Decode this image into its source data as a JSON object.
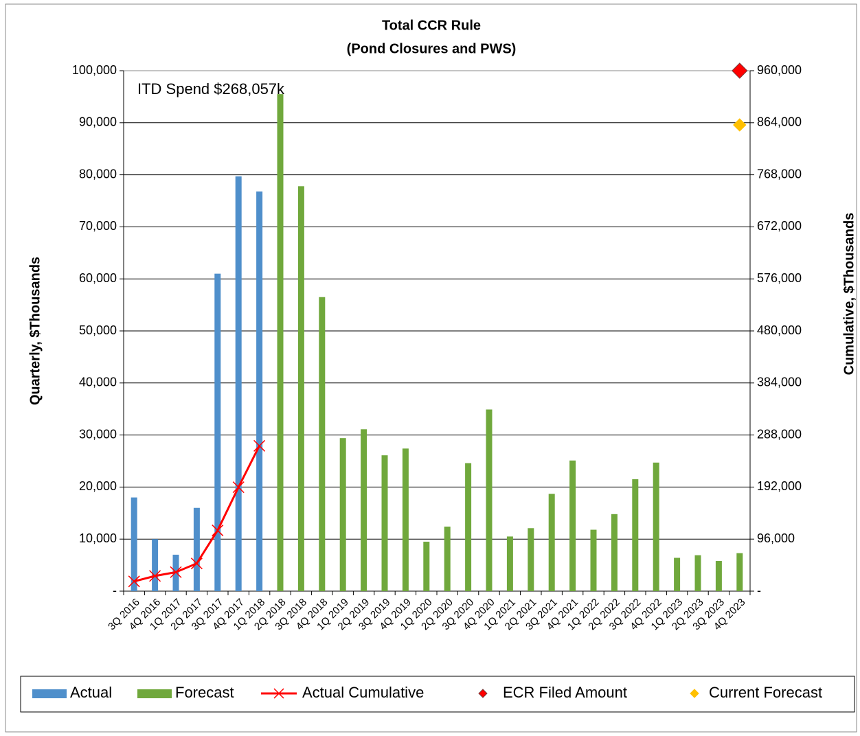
{
  "chart_data": {
    "type": "bar",
    "title": "Total CCR Rule",
    "subtitle": "(Pond Closures and PWS)",
    "annotation": "ITD Spend  $268,057k",
    "ylabel": "Quarterly, $Thousands",
    "y2label": "Cumulative, $Thousands",
    "grid": true,
    "legend": "bottom",
    "categories": [
      "3Q 2016",
      "4Q 2016",
      "1Q 2017",
      "2Q 2017",
      "3Q 2017",
      "4Q 2017",
      "1Q 2018",
      "2Q 2018",
      "3Q 2018",
      "4Q 2018",
      "1Q 2019",
      "2Q 2019",
      "3Q 2019",
      "4Q 2019",
      "1Q 2020",
      "2Q 2020",
      "3Q 2020",
      "4Q 2020",
      "1Q 2021",
      "2Q 2021",
      "3Q 2021",
      "4Q 2021",
      "1Q 2022",
      "2Q 2022",
      "3Q 2022",
      "4Q 2022",
      "1Q 2023",
      "2Q 2023",
      "3Q 2023",
      "4Q 2023"
    ],
    "ylim": [
      0,
      100000
    ],
    "yticks": [
      {
        "value": 0,
        "label": "-"
      },
      {
        "value": 10000,
        "label": "10,000"
      },
      {
        "value": 20000,
        "label": "20,000"
      },
      {
        "value": 30000,
        "label": "30,000"
      },
      {
        "value": 40000,
        "label": "40,000"
      },
      {
        "value": 50000,
        "label": "50,000"
      },
      {
        "value": 60000,
        "label": "60,000"
      },
      {
        "value": 70000,
        "label": "70,000"
      },
      {
        "value": 80000,
        "label": "80,000"
      },
      {
        "value": 90000,
        "label": "90,000"
      },
      {
        "value": 100000,
        "label": "100,000"
      }
    ],
    "y2lim": [
      0,
      960000
    ],
    "y2ticks": [
      {
        "value": 0,
        "label": "-"
      },
      {
        "value": 96000,
        "label": "96,000"
      },
      {
        "value": 192000,
        "label": "192,000"
      },
      {
        "value": 288000,
        "label": "288,000"
      },
      {
        "value": 384000,
        "label": "384,000"
      },
      {
        "value": 480000,
        "label": "480,000"
      },
      {
        "value": 576000,
        "label": "576,000"
      },
      {
        "value": 672000,
        "label": "672,000"
      },
      {
        "value": 768000,
        "label": "768,000"
      },
      {
        "value": 864000,
        "label": "864,000"
      },
      {
        "value": 960000,
        "label": "960,000"
      }
    ],
    "series": [
      {
        "name": "Actual",
        "type": "bar",
        "color": "#4f8fcb",
        "values": [
          18000,
          10000,
          7000,
          16000,
          61000,
          79700,
          76800,
          null,
          null,
          null,
          null,
          null,
          null,
          null,
          null,
          null,
          null,
          null,
          null,
          null,
          null,
          null,
          null,
          null,
          null,
          null,
          null,
          null,
          null,
          null
        ]
      },
      {
        "name": "Forecast",
        "type": "bar",
        "color": "#70a83c",
        "values": [
          null,
          null,
          null,
          null,
          null,
          null,
          null,
          95500,
          77800,
          56500,
          29400,
          31100,
          26100,
          27400,
          9500,
          12400,
          24600,
          34900,
          10500,
          12100,
          18700,
          25100,
          11800,
          14800,
          21500,
          24700,
          6400,
          6900,
          5800,
          7300
        ]
      },
      {
        "name": "Actual Cumulative",
        "type": "line",
        "axis": "y2",
        "color": "#ff0000",
        "values": [
          18000,
          28000,
          35000,
          51000,
          112000,
          191700,
          268057,
          null,
          null,
          null,
          null,
          null,
          null,
          null,
          null,
          null,
          null,
          null,
          null,
          null,
          null,
          null,
          null,
          null,
          null,
          null,
          null,
          null,
          null,
          null
        ]
      },
      {
        "name": "ECR Filed Amount",
        "type": "scatter",
        "axis": "y2",
        "color": "#ff0000",
        "values": [
          null,
          null,
          null,
          null,
          null,
          null,
          null,
          null,
          null,
          null,
          null,
          null,
          null,
          null,
          null,
          null,
          null,
          null,
          null,
          null,
          null,
          null,
          null,
          null,
          null,
          null,
          null,
          null,
          null,
          960000
        ]
      },
      {
        "name": "Current Forecast",
        "type": "scatter",
        "axis": "y2",
        "color": "#ffc000",
        "values": [
          null,
          null,
          null,
          null,
          null,
          null,
          null,
          null,
          null,
          null,
          null,
          null,
          null,
          null,
          null,
          null,
          null,
          null,
          null,
          null,
          null,
          null,
          null,
          null,
          null,
          null,
          null,
          null,
          null,
          860000
        ]
      }
    ]
  }
}
